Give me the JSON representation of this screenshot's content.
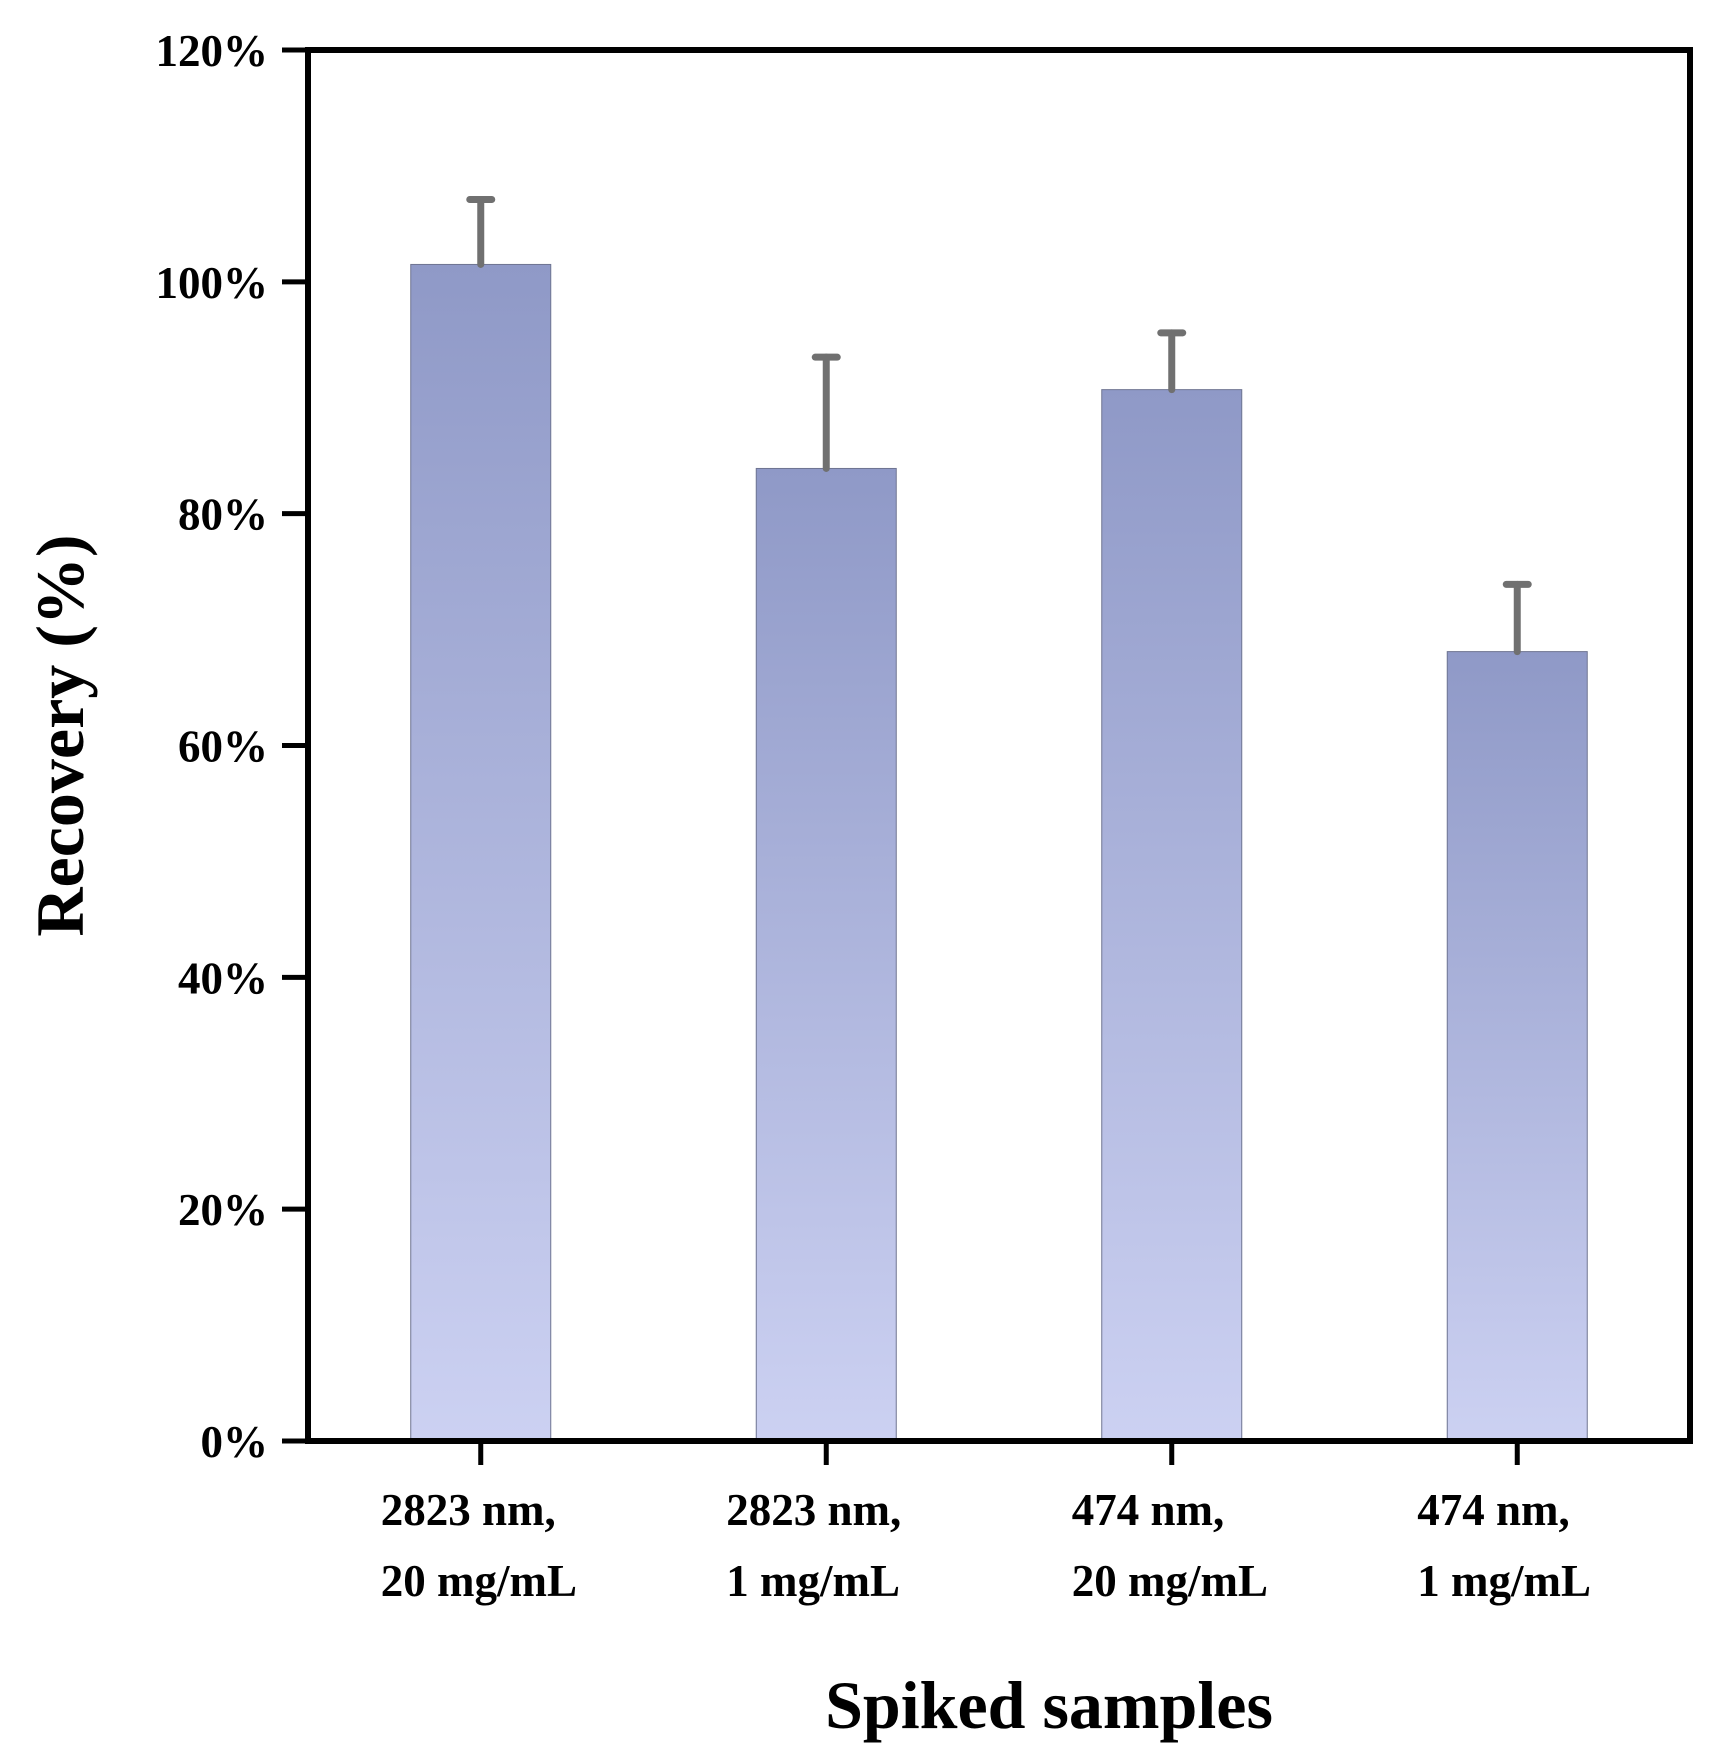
{
  "chart_data": {
    "type": "bar",
    "title": "",
    "xlabel": "Spiked samples",
    "ylabel": "Recovery (%)",
    "ylim": [
      0,
      1.2
    ],
    "yticks": [
      {
        "value": 0,
        "label": "0%"
      },
      {
        "value": 0.2,
        "label": "20%"
      },
      {
        "value": 0.4,
        "label": "40%"
      },
      {
        "value": 0.6,
        "label": "60%"
      },
      {
        "value": 0.8,
        "label": "80%"
      },
      {
        "value": 1.0,
        "label": "100%"
      },
      {
        "value": 1.2,
        "label": "120%"
      }
    ],
    "categories": [
      {
        "line1": "2823 nm,",
        "line2": "20 mg/mL"
      },
      {
        "line1": "2823 nm,",
        "line2": "1 mg/mL"
      },
      {
        "line1": "474 nm,",
        "line2": "20 mg/mL"
      },
      {
        "line1": "474 nm,",
        "line2": "1 mg/mL"
      }
    ],
    "values": [
      1.015,
      0.839,
      0.907,
      0.681
    ],
    "errors": [
      0.056,
      0.096,
      0.049,
      0.058
    ],
    "grid": false,
    "legend": "none",
    "colors": {
      "bar_top": "#8f99c7",
      "bar_bottom": "#ccd1f2",
      "bar_edge": "#6e7491",
      "error": "#707070",
      "axis": "#000000"
    }
  }
}
